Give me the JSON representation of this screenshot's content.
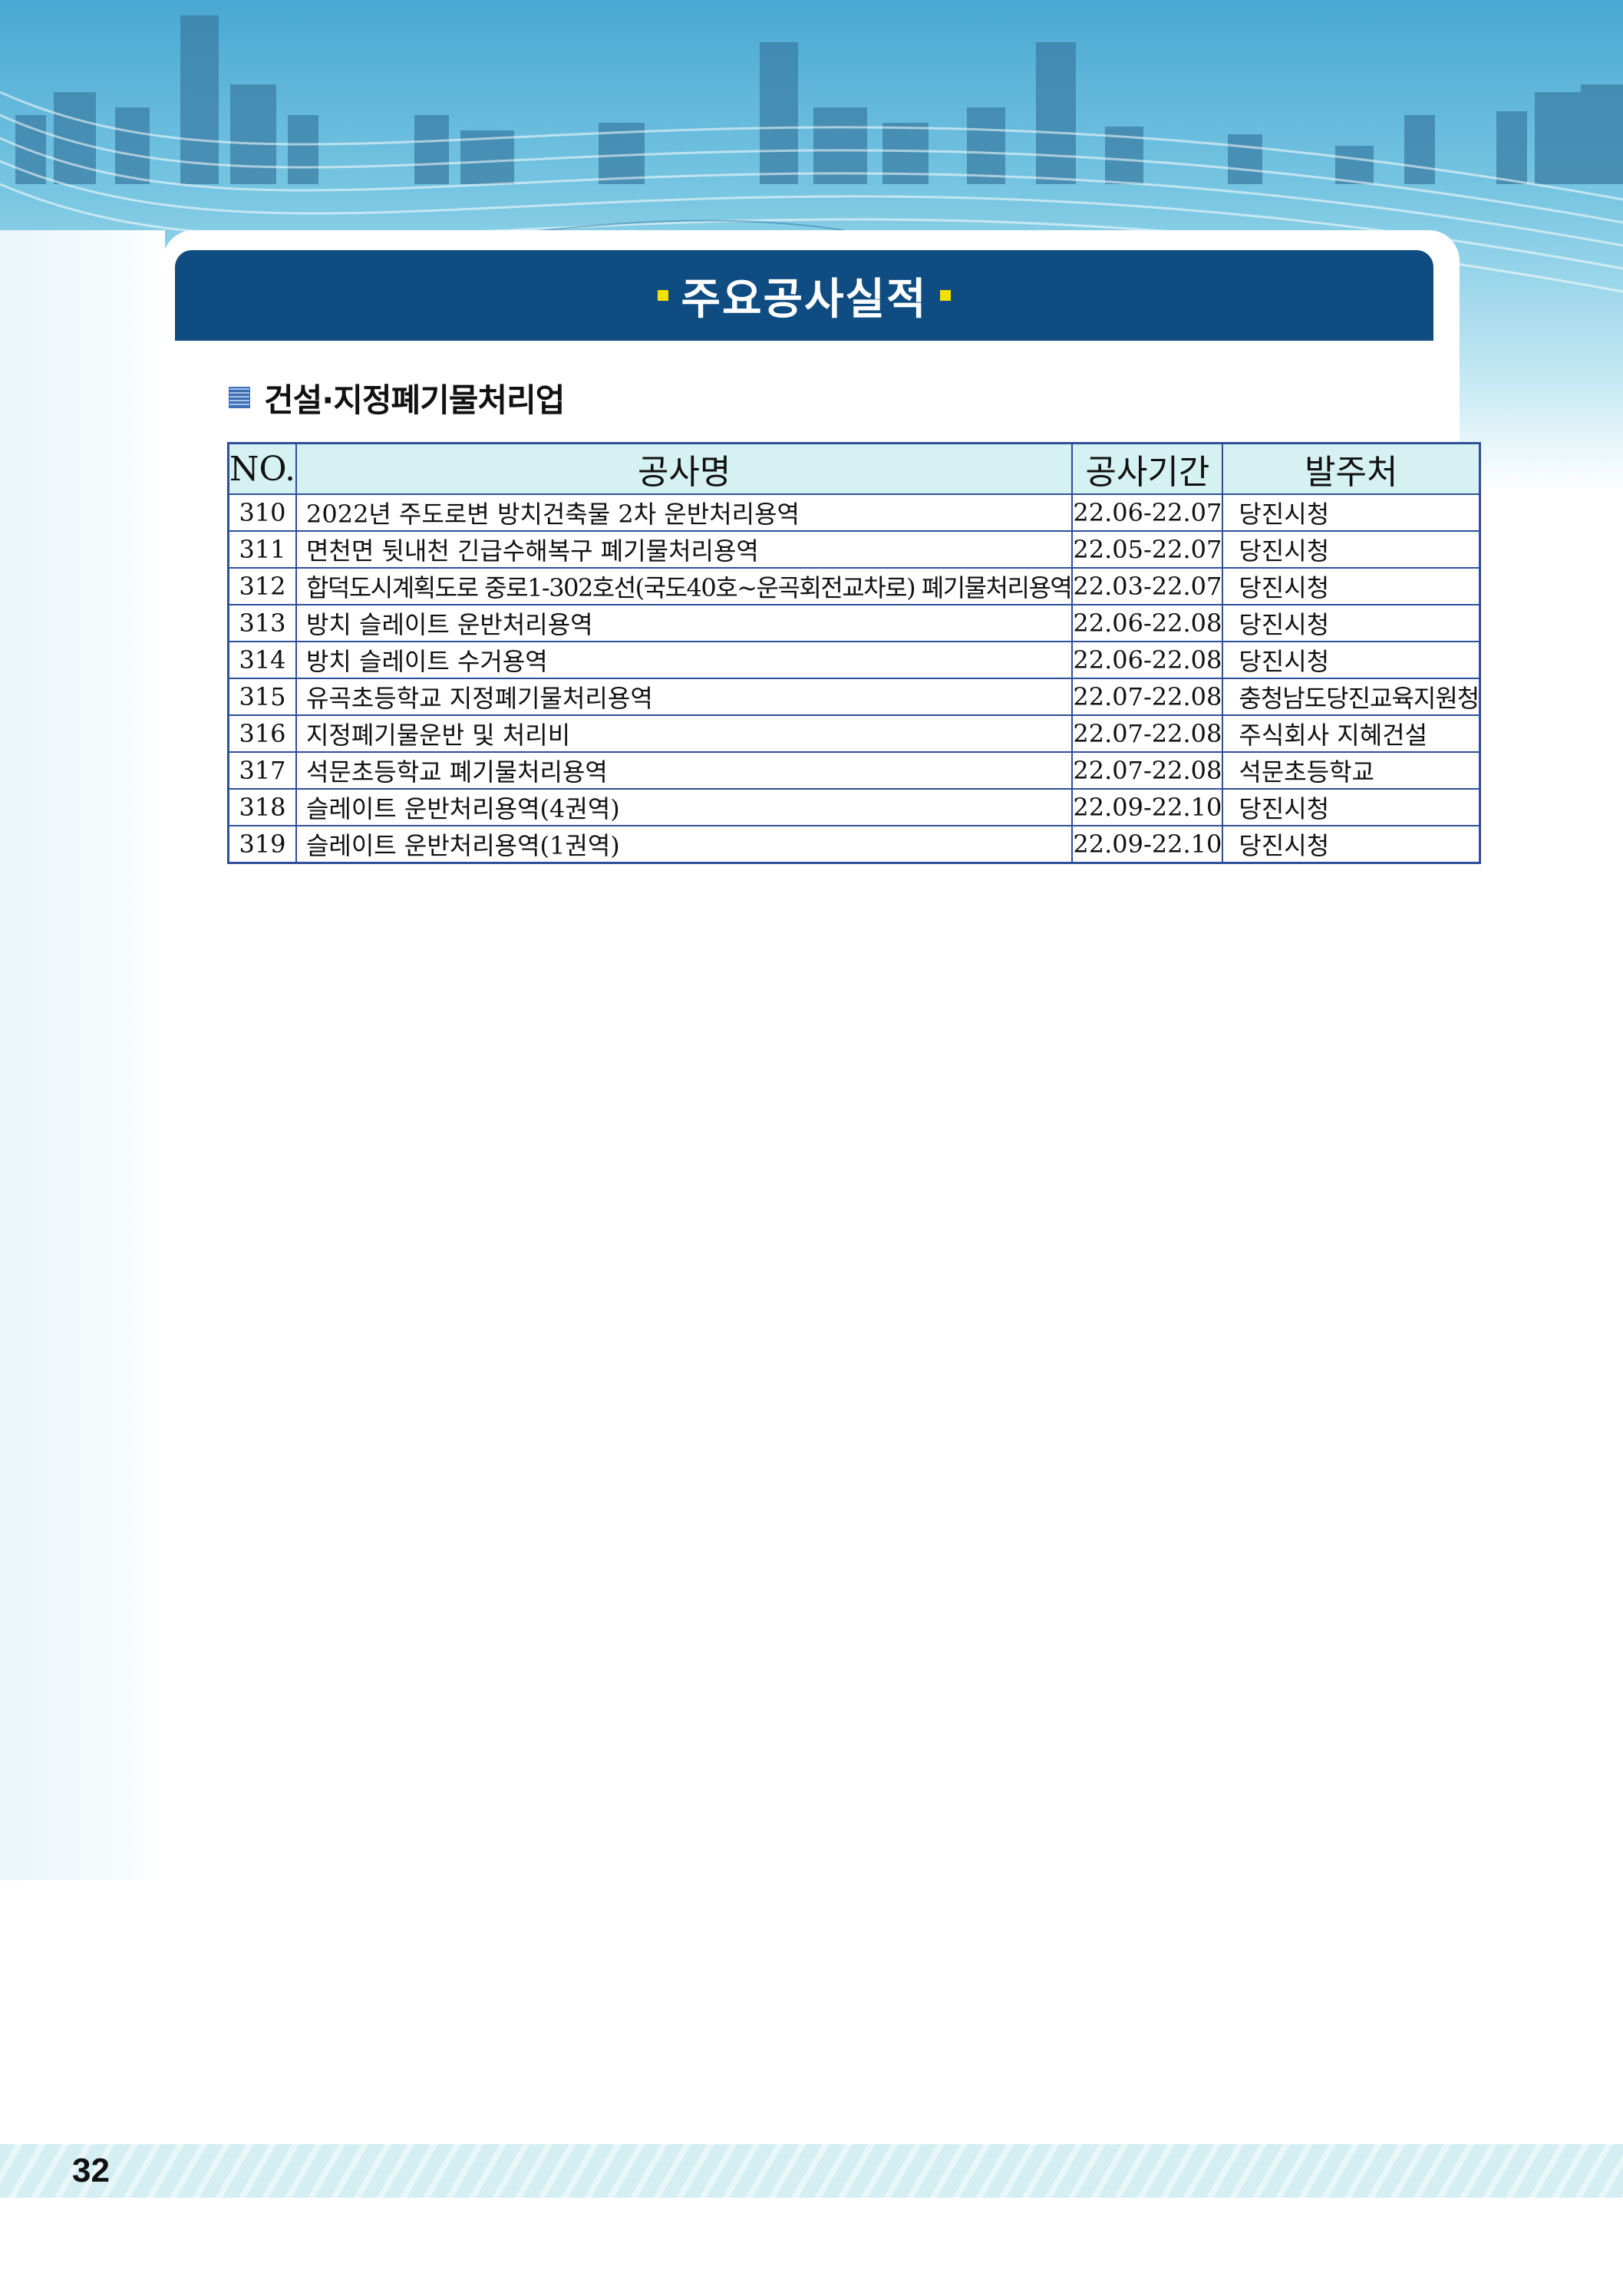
{
  "header": {
    "title": "주요공사실적"
  },
  "section": {
    "title": "건설·지정폐기물처리업"
  },
  "table": {
    "headers": {
      "no": "NO.",
      "name": "공사명",
      "period": "공사기간",
      "client": "발주처"
    },
    "rows": [
      {
        "no": "310",
        "name": "2022년 주도로변 방치건축물 2차 운반처리용역",
        "period": "22.06-22.07",
        "client": "당진시청"
      },
      {
        "no": "311",
        "name": "면천면 뒷내천 긴급수해복구 폐기물처리용역",
        "period": "22.05-22.07",
        "client": "당진시청"
      },
      {
        "no": "312",
        "name": "합덕도시계획도로 중로1-302호선(국도40호~운곡회전교차로) 폐기물처리용역",
        "period": "22.03-22.07",
        "client": "당진시청"
      },
      {
        "no": "313",
        "name": "방치 슬레이트 운반처리용역",
        "period": "22.06-22.08",
        "client": "당진시청"
      },
      {
        "no": "314",
        "name": "방치 슬레이트 수거용역",
        "period": "22.06-22.08",
        "client": "당진시청"
      },
      {
        "no": "315",
        "name": "유곡초등학교 지정폐기물처리용역",
        "period": "22.07-22.08",
        "client": "충청남도당진교육지원청"
      },
      {
        "no": "316",
        "name": "지정폐기물운반 및 처리비",
        "period": "22.07-22.08",
        "client": "주식회사 지혜건설"
      },
      {
        "no": "317",
        "name": "석문초등학교 폐기물처리용역",
        "period": "22.07-22.08",
        "client": "석문초등학교"
      },
      {
        "no": "318",
        "name": "슬레이트 운반처리용역(4권역)",
        "period": "22.09-22.10",
        "client": "당진시청"
      },
      {
        "no": "319",
        "name": "슬레이트 운반처리용역(1권역)",
        "period": "22.09-22.10",
        "client": "당진시청"
      }
    ]
  },
  "footer": {
    "page_number": "32"
  },
  "colors": {
    "title_bar": "#0e4c82",
    "title_accent": "#f4e000",
    "table_border": "#2f4f9a",
    "table_header_bg": "#d6f1f2"
  }
}
